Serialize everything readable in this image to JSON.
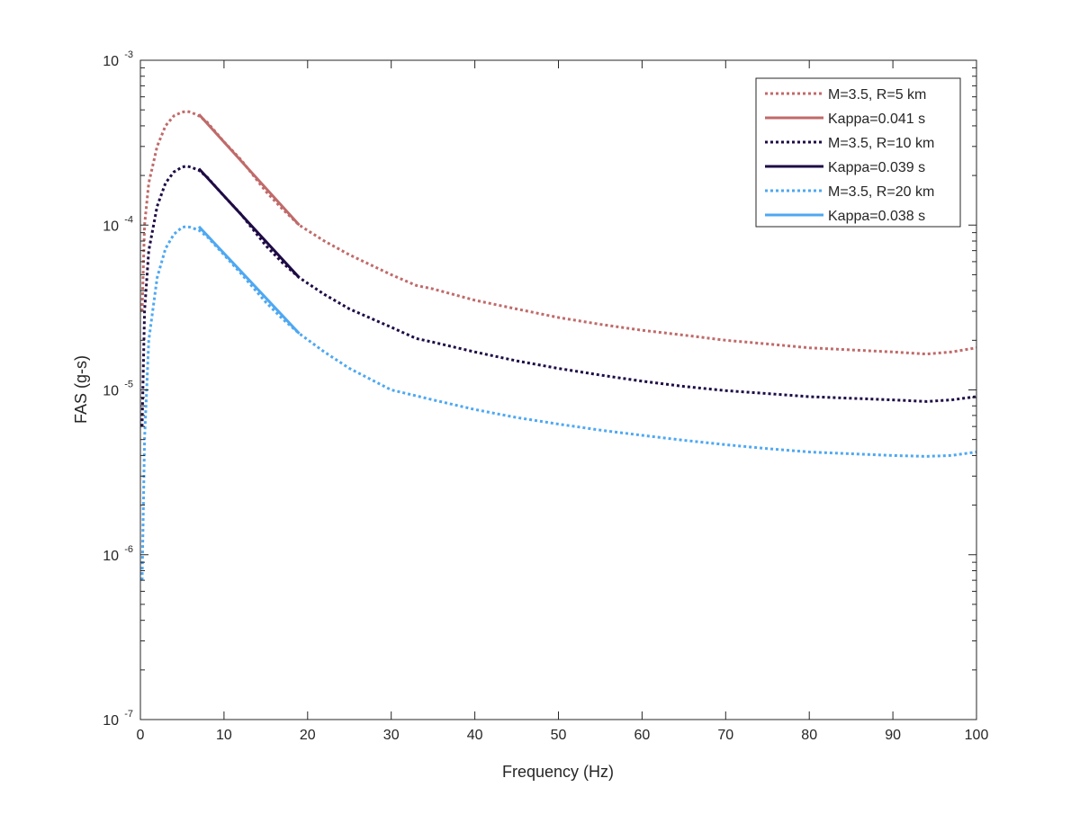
{
  "chart_data": {
    "type": "line",
    "title": "",
    "xlabel": "Frequency (Hz)",
    "ylabel": "FAS (g-s)",
    "xlim": [
      0,
      100
    ],
    "ylim": [
      1e-07,
      0.001
    ],
    "yscale": "log",
    "grid": false,
    "legend_position": "top-right",
    "x_ticks": [
      0,
      10,
      20,
      30,
      40,
      50,
      60,
      70,
      80,
      90,
      100
    ],
    "y_ticks": [
      {
        "value": 1e-07,
        "base": "10",
        "exp": "-7"
      },
      {
        "value": 1e-06,
        "base": "10",
        "exp": "-6"
      },
      {
        "value": 1e-05,
        "base": "10",
        "exp": "-5"
      },
      {
        "value": 0.0001,
        "base": "10",
        "exp": "-4"
      },
      {
        "value": 0.001,
        "base": "10",
        "exp": "-3"
      }
    ],
    "series": [
      {
        "name": "M=3.5, R=5 km",
        "style": "dotted",
        "color": "#C06A6A",
        "x": [
          0.2,
          0.5,
          1,
          2,
          3,
          4,
          5,
          5.5,
          6,
          7,
          8,
          10,
          12,
          15,
          17,
          19,
          22,
          25,
          30,
          33,
          35,
          40,
          45,
          50,
          55,
          60,
          65,
          70,
          75,
          80,
          85,
          90,
          94,
          97,
          100
        ],
        "y": [
          3e-05,
          0.0001,
          0.00018,
          0.0003,
          0.0004,
          0.00046,
          0.000485,
          0.00049,
          0.000485,
          0.00046,
          0.00042,
          0.00032,
          0.00025,
          0.00016,
          0.000125,
          0.0001,
          8e-05,
          6.6e-05,
          5e-05,
          4.3e-05,
          4.1e-05,
          3.5e-05,
          3.1e-05,
          2.75e-05,
          2.5e-05,
          2.3e-05,
          2.15e-05,
          2e-05,
          1.9e-05,
          1.8e-05,
          1.75e-05,
          1.7e-05,
          1.65e-05,
          1.7e-05,
          1.8e-05
        ]
      },
      {
        "name": "Kappa=0.041 s",
        "style": "solid",
        "color": "#C06A6A",
        "x": [
          7,
          19
        ],
        "y": [
          0.00047,
          0.0001
        ]
      },
      {
        "name": "M=3.5, R=10 km",
        "style": "dotted",
        "color": "#1E0B45",
        "x": [
          0.2,
          0.5,
          1,
          2,
          3,
          4,
          5,
          5.5,
          6,
          7,
          8,
          10,
          12,
          15,
          17,
          19,
          22,
          25,
          30,
          33,
          35,
          40,
          45,
          50,
          55,
          60,
          65,
          70,
          75,
          80,
          85,
          90,
          94,
          97,
          100
        ],
        "y": [
          6e-06,
          3e-05,
          7e-05,
          0.00013,
          0.00018,
          0.00021,
          0.000225,
          0.000228,
          0.000225,
          0.000215,
          0.000195,
          0.00015,
          0.000117,
          7.5e-05,
          5.9e-05,
          4.8e-05,
          3.8e-05,
          3.1e-05,
          2.4e-05,
          2.05e-05,
          1.95e-05,
          1.7e-05,
          1.5e-05,
          1.35e-05,
          1.23e-05,
          1.13e-05,
          1.05e-05,
          9.9e-06,
          9.5e-06,
          9.1e-06,
          8.9e-06,
          8.7e-06,
          8.5e-06,
          8.7e-06,
          9.1e-06
        ]
      },
      {
        "name": "Kappa=0.039 s",
        "style": "solid",
        "color": "#1E0B45",
        "x": [
          7,
          19
        ],
        "y": [
          0.00022,
          4.8e-05
        ]
      },
      {
        "name": "M=3.5, R=20 km",
        "style": "dotted",
        "color": "#4EA8F2",
        "x": [
          0.2,
          0.5,
          1,
          2,
          3,
          4,
          5,
          5.5,
          6,
          7,
          8,
          10,
          12,
          15,
          17,
          19,
          22,
          25,
          30,
          33,
          35,
          40,
          45,
          50,
          55,
          60,
          65,
          70,
          75,
          80,
          85,
          90,
          94,
          97,
          100
        ],
        "y": [
          7e-07,
          5e-06,
          2e-05,
          4.8e-05,
          7.2e-05,
          8.8e-05,
          9.7e-05,
          9.8e-05,
          9.7e-05,
          9.3e-05,
          8.5e-05,
          6.6e-05,
          5.1e-05,
          3.4e-05,
          2.7e-05,
          2.2e-05,
          1.7e-05,
          1.35e-05,
          1e-05,
          9.2e-06,
          8.7e-06,
          7.6e-06,
          6.8e-06,
          6.2e-06,
          5.7e-06,
          5.3e-06,
          4.95e-06,
          4.65e-06,
          4.4e-06,
          4.2e-06,
          4.1e-06,
          4e-06,
          3.95e-06,
          4e-06,
          4.2e-06
        ]
      },
      {
        "name": "Kappa=0.038 s",
        "style": "solid",
        "color": "#4EA8F2",
        "x": [
          7,
          19
        ],
        "y": [
          9.8e-05,
          2.2e-05
        ]
      }
    ]
  }
}
